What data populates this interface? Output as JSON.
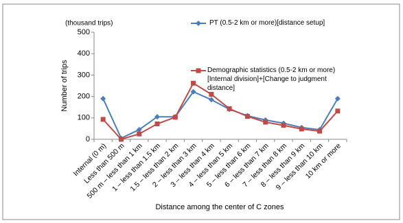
{
  "chart_data": {
    "type": "line",
    "y_unit": "(thousand trips)",
    "y_label": "Number of trips",
    "x_label": "Distance among the center of C zones",
    "categories": [
      "Internal (0 m)",
      "Less than 500 m",
      "500 m – less than 1 km",
      "1 – less than 1.5 km",
      "1.5 – less than 2 km",
      "2 – less than 3 km",
      "3 – less than 4 km",
      "4 – less than 5 km",
      "5 – less than 6 km",
      "6 – less than 7 km",
      "7 – less than 8 km",
      "8 – less than 9 km",
      "9 – less than 10 km",
      "10 km or more"
    ],
    "series": [
      {
        "name": "PT (0.5-2 km or more)[distance setup]",
        "color": "#4a7ebb",
        "marker": "diamond",
        "values": [
          190,
          5,
          45,
          105,
          105,
          222,
          185,
          140,
          110,
          90,
          75,
          55,
          45,
          190
        ]
      },
      {
        "name": "Demographic statistics (0.5-2 km or more) [Internal division]+[Change to judgment distance]",
        "color": "#be4b48",
        "marker": "square",
        "values": [
          93,
          0,
          25,
          72,
          103,
          262,
          210,
          143,
          107,
          80,
          65,
          48,
          38,
          132
        ]
      }
    ],
    "ylim": [
      0,
      500
    ],
    "yticks": [
      0,
      100,
      200,
      300,
      400,
      500
    ],
    "grid": false
  }
}
